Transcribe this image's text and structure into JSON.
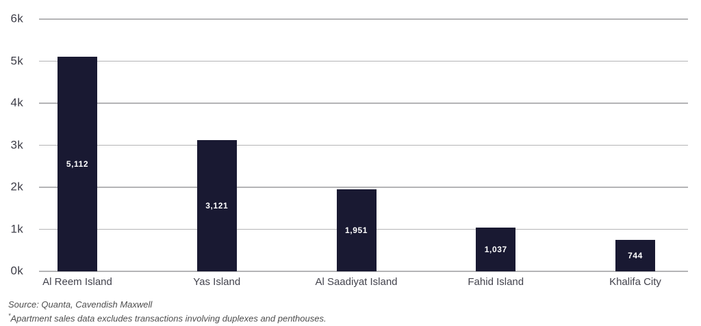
{
  "chart_data": {
    "type": "bar",
    "categories": [
      "Al Reem Island",
      "Yas Island",
      "Al Saadiyat Island",
      "Fahid Island",
      "Khalifa City"
    ],
    "values": [
      5112,
      3121,
      1951,
      1037,
      744
    ],
    "value_labels": [
      "5,112",
      "3,121",
      "1,951",
      "1,037",
      "744"
    ],
    "title": "",
    "xlabel": "",
    "ylabel": "",
    "ylim": [
      0,
      6000
    ],
    "ytick_labels": [
      "0k",
      "1k",
      "2k",
      "3k",
      "4k",
      "5k",
      "6k"
    ],
    "grid": true,
    "legend": "none",
    "bar_color": "#191932",
    "value_label_color": "#ffffff",
    "gridline_color": "#b4b4b6"
  },
  "footer": {
    "source": "Source: Quanta, Cavendish Maxwell",
    "footnote_marker": "*",
    "footnote_text": "Apartment sales data excludes transactions involving duplexes and penthouses."
  }
}
